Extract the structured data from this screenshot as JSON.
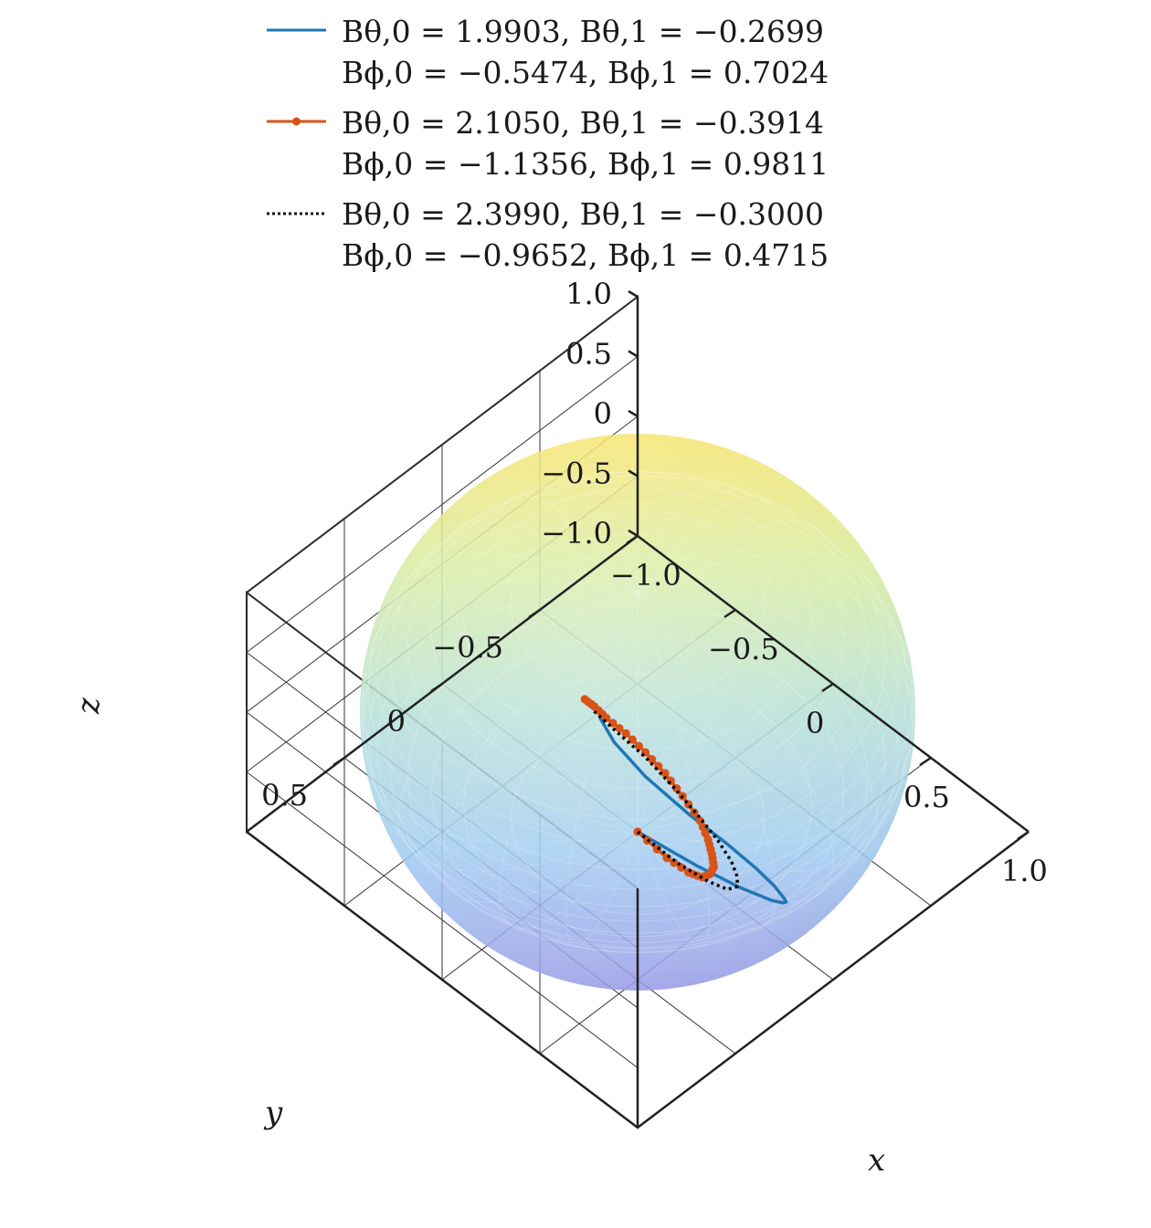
{
  "chart_data": {
    "type": "line",
    "projection": "3d",
    "title": "",
    "surface": {
      "shape": "unit-sphere",
      "colormap": "parula (blue at z=-1 to yellow at z=1)",
      "transparent": true
    },
    "axes": {
      "x": {
        "label": "x",
        "lim": [
          -1,
          1
        ],
        "ticks": [
          -1.0,
          -0.5,
          0,
          0.5,
          1.0
        ],
        "tick_labels": [
          "−1.0",
          "−0.5",
          "0",
          "0.5",
          "1.0"
        ]
      },
      "y": {
        "label": "y",
        "lim": [
          -1,
          1
        ],
        "ticks": [
          -0.5,
          0,
          0.5
        ],
        "tick_labels": [
          "−0.5",
          "0",
          "0.5"
        ]
      },
      "z": {
        "label": "z",
        "lim": [
          -1,
          1
        ],
        "ticks": [
          -1.0,
          -0.5,
          0,
          0.5,
          1.0
        ],
        "tick_labels": [
          "−1.0",
          "−0.5",
          "0",
          "0.5",
          "1.0"
        ]
      }
    },
    "grid": true,
    "legend": {
      "position": "top",
      "entries": [
        {
          "line1": "Bθ,0 = 1.9903,  Bθ,1 = −0.2699",
          "line2": "Bϕ,0 = −0.5474,  Bϕ,1 = 0.7024",
          "color": "#1f77b4",
          "style": "solid",
          "marker": "none"
        },
        {
          "line1": "Bθ,0 = 2.1050,  Bθ,1 = −0.3914",
          "line2": "Bϕ,0 = −1.1356,  Bϕ,1 = 0.9811",
          "color": "#d95319",
          "style": "solid",
          "marker": "dot"
        },
        {
          "line1": "Bθ,0 = 2.3990,  Bθ,1 = −0.3000",
          "line2": "Bϕ,0 = −0.9652,  Bϕ,1 = 0.4715",
          "color": "#000000",
          "style": "dotted",
          "marker": "none"
        }
      ]
    },
    "series": [
      {
        "color": "#1f77b4",
        "style": "solid",
        "marker": "none",
        "points": [
          [
            0.0,
            0.0,
            -1.0
          ],
          [
            0.28,
            -0.02,
            -0.96
          ],
          [
            0.5,
            -0.02,
            -0.87
          ],
          [
            0.68,
            0.0,
            -0.73
          ],
          [
            0.78,
            0.04,
            -0.58
          ],
          [
            0.86,
            0.1,
            -0.4
          ],
          [
            0.92,
            0.17,
            -0.21
          ],
          [
            0.93,
            0.23,
            -0.02
          ],
          [
            0.9,
            0.29,
            0.16
          ],
          [
            0.81,
            0.35,
            0.33
          ],
          [
            0.66,
            0.4,
            0.46
          ],
          [
            0.46,
            0.42,
            0.55
          ],
          [
            0.28,
            0.4,
            0.59
          ],
          [
            0.17,
            0.36,
            0.6
          ]
        ]
      },
      {
        "color": "#d95319",
        "style": "solid",
        "marker": "dot",
        "points": [
          [
            0.0,
            0.0,
            -1.0
          ],
          [
            0.18,
            0.03,
            -0.96
          ],
          [
            0.32,
            0.06,
            -0.87
          ],
          [
            0.42,
            0.09,
            -0.75
          ],
          [
            0.49,
            0.12,
            -0.6
          ],
          [
            0.54,
            0.15,
            -0.44
          ],
          [
            0.56,
            0.18,
            -0.27
          ],
          [
            0.57,
            0.21,
            -0.1
          ],
          [
            0.56,
            0.24,
            0.08
          ],
          [
            0.5,
            0.27,
            0.25
          ],
          [
            0.43,
            0.29,
            0.38
          ],
          [
            0.35,
            0.31,
            0.48
          ],
          [
            0.26,
            0.32,
            0.54
          ],
          [
            0.17,
            0.33,
            0.57
          ],
          [
            0.11,
            0.33,
            0.59
          ],
          [
            0.06,
            0.33,
            0.59
          ]
        ]
      },
      {
        "color": "#000000",
        "style": "dotted",
        "marker": "none",
        "points": [
          [
            0.0,
            0.0,
            -1.0
          ],
          [
            0.22,
            0.02,
            -0.96
          ],
          [
            0.4,
            0.04,
            -0.87
          ],
          [
            0.53,
            0.07,
            -0.74
          ],
          [
            0.61,
            0.1,
            -0.58
          ],
          [
            0.65,
            0.14,
            -0.4
          ],
          [
            0.66,
            0.18,
            -0.21
          ],
          [
            0.63,
            0.22,
            -0.02
          ],
          [
            0.57,
            0.26,
            0.16
          ],
          [
            0.47,
            0.29,
            0.32
          ],
          [
            0.35,
            0.31,
            0.44
          ],
          [
            0.22,
            0.33,
            0.52
          ],
          [
            0.1,
            0.33,
            0.55
          ]
        ]
      }
    ]
  }
}
